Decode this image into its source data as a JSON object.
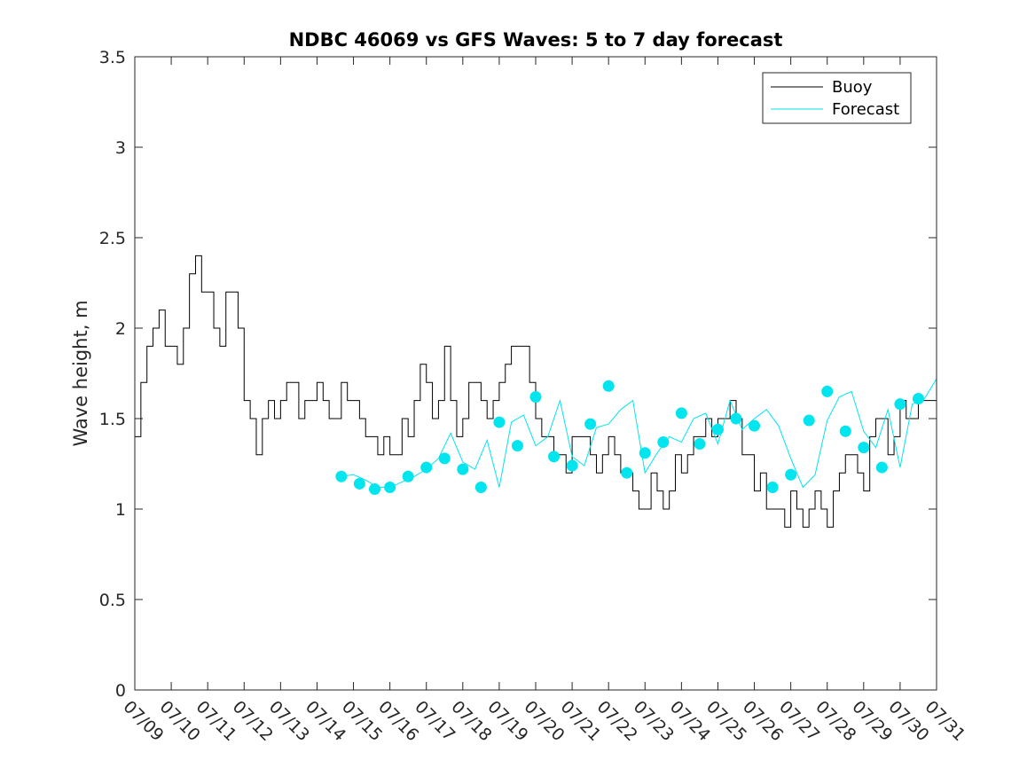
{
  "chart_data": {
    "type": "line",
    "title": "NDBC 46069 vs GFS Waves: 5 to 7 day forecast",
    "xlabel": "",
    "ylabel": "Wave height, m",
    "xlim": [
      "07/09",
      "07/31"
    ],
    "ylim": [
      0,
      3.5
    ],
    "y_ticks": [
      "0",
      "0.5",
      "1",
      "1.5",
      "2",
      "2.5",
      "3",
      "3.5"
    ],
    "x_ticks": [
      "07/09",
      "07/10",
      "07/11",
      "07/12",
      "07/13",
      "07/14",
      "07/15",
      "07/16",
      "07/17",
      "07/18",
      "07/19",
      "07/20",
      "07/21",
      "07/22",
      "07/23",
      "07/24",
      "07/25",
      "07/26",
      "07/27",
      "07/28",
      "07/29",
      "07/30",
      "07/31"
    ],
    "legend": {
      "placement": "top-right",
      "entries": [
        "Buoy",
        "Forecast"
      ]
    },
    "colors": {
      "buoy": "#000000",
      "forecast": "#00e5ee",
      "axis": "#262626"
    },
    "buoy": {
      "name": "Buoy",
      "x": [
        "07/09 00:00",
        "07/09 04:00",
        "07/09 08:00",
        "07/09 12:00",
        "07/09 16:00",
        "07/09 20:00",
        "07/10 00:00",
        "07/10 04:00",
        "07/10 08:00",
        "07/10 12:00",
        "07/10 16:00",
        "07/10 20:00",
        "07/11 00:00",
        "07/11 04:00",
        "07/11 08:00",
        "07/11 12:00",
        "07/11 16:00",
        "07/11 20:00",
        "07/12 00:00",
        "07/12 04:00",
        "07/12 08:00",
        "07/12 12:00",
        "07/12 16:00",
        "07/12 20:00",
        "07/13 00:00",
        "07/13 04:00",
        "07/13 08:00",
        "07/13 12:00",
        "07/13 16:00",
        "07/13 20:00",
        "07/14 00:00",
        "07/14 04:00",
        "07/14 08:00",
        "07/14 12:00",
        "07/14 16:00",
        "07/14 20:00",
        "07/15 00:00",
        "07/15 04:00",
        "07/15 08:00",
        "07/15 12:00",
        "07/15 16:00",
        "07/15 20:00",
        "07/16 00:00",
        "07/16 04:00",
        "07/16 08:00",
        "07/16 12:00",
        "07/16 16:00",
        "07/16 20:00",
        "07/17 00:00",
        "07/17 04:00",
        "07/17 08:00",
        "07/17 12:00",
        "07/17 16:00",
        "07/17 20:00",
        "07/18 00:00",
        "07/18 04:00",
        "07/18 08:00",
        "07/18 12:00",
        "07/18 16:00",
        "07/18 20:00",
        "07/19 00:00",
        "07/19 04:00",
        "07/19 08:00",
        "07/19 12:00",
        "07/19 16:00",
        "07/19 20:00",
        "07/20 00:00",
        "07/20 04:00",
        "07/20 08:00",
        "07/20 12:00",
        "07/20 16:00",
        "07/20 20:00",
        "07/21 00:00",
        "07/21 04:00",
        "07/21 08:00",
        "07/21 12:00",
        "07/21 16:00",
        "07/21 20:00",
        "07/22 00:00",
        "07/22 04:00",
        "07/22 08:00",
        "07/22 12:00",
        "07/22 16:00",
        "07/22 20:00",
        "07/23 00:00",
        "07/23 04:00",
        "07/23 08:00",
        "07/23 12:00",
        "07/23 16:00",
        "07/23 20:00",
        "07/24 00:00",
        "07/24 04:00",
        "07/24 08:00",
        "07/24 12:00",
        "07/24 16:00",
        "07/24 20:00",
        "07/25 00:00",
        "07/25 04:00",
        "07/25 08:00",
        "07/25 12:00",
        "07/25 16:00",
        "07/25 20:00",
        "07/26 00:00",
        "07/26 04:00",
        "07/26 08:00",
        "07/26 12:00",
        "07/26 16:00",
        "07/26 20:00",
        "07/27 00:00",
        "07/27 04:00",
        "07/27 08:00",
        "07/27 12:00",
        "07/27 16:00",
        "07/27 20:00",
        "07/28 00:00",
        "07/28 04:00",
        "07/28 08:00",
        "07/28 12:00",
        "07/28 16:00",
        "07/28 20:00",
        "07/29 00:00",
        "07/29 04:00",
        "07/29 08:00",
        "07/29 12:00",
        "07/29 16:00",
        "07/29 20:00",
        "07/30 00:00",
        "07/30 04:00",
        "07/30 08:00",
        "07/30 12:00",
        "07/30 16:00",
        "07/30 20:00",
        "07/31 00:00"
      ],
      "values": [
        1.4,
        1.7,
        1.9,
        2.0,
        2.1,
        1.9,
        1.9,
        1.8,
        2.0,
        2.3,
        2.4,
        2.2,
        2.2,
        2.0,
        1.9,
        2.2,
        2.2,
        2.0,
        1.6,
        1.5,
        1.3,
        1.5,
        1.6,
        1.5,
        1.6,
        1.7,
        1.7,
        1.5,
        1.6,
        1.6,
        1.7,
        1.6,
        1.5,
        1.5,
        1.7,
        1.6,
        1.6,
        1.5,
        1.4,
        1.4,
        1.3,
        1.4,
        1.3,
        1.3,
        1.5,
        1.4,
        1.6,
        1.8,
        1.7,
        1.5,
        1.6,
        1.9,
        1.6,
        1.4,
        1.5,
        1.7,
        1.7,
        1.6,
        1.5,
        1.6,
        1.7,
        1.8,
        1.9,
        1.9,
        1.9,
        1.7,
        1.5,
        1.4,
        1.4,
        1.3,
        1.3,
        1.2,
        1.4,
        1.4,
        1.4,
        1.3,
        1.2,
        1.3,
        1.4,
        1.3,
        1.2,
        1.2,
        1.1,
        1.0,
        1.0,
        1.2,
        1.1,
        1.0,
        1.1,
        1.3,
        1.2,
        1.3,
        1.4,
        1.4,
        1.5,
        1.4,
        1.5,
        1.5,
        1.6,
        1.5,
        1.3,
        1.3,
        1.1,
        1.2,
        1.0,
        1.0,
        1.0,
        0.9,
        1.1,
        1.0,
        0.9,
        1.0,
        1.1,
        1.0,
        0.9,
        1.1,
        1.2,
        1.3,
        1.3,
        1.2,
        1.1,
        1.4,
        1.5,
        1.5,
        1.3,
        1.4,
        1.6,
        1.5,
        1.5,
        1.6,
        1.6,
        1.6,
        1.5
      ]
    },
    "forecast": {
      "name": "Forecast",
      "x": [
        "07/14 16:00",
        "07/15 00:00",
        "07/15 08:00",
        "07/15 16:00",
        "07/16 00:00",
        "07/16 08:00",
        "07/16 16:00",
        "07/17 00:00",
        "07/17 08:00",
        "07/17 16:00",
        "07/18 00:00",
        "07/18 08:00",
        "07/18 16:00",
        "07/19 00:00",
        "07/19 08:00",
        "07/19 16:00",
        "07/20 00:00",
        "07/20 08:00",
        "07/20 16:00",
        "07/21 00:00",
        "07/21 08:00",
        "07/21 16:00",
        "07/22 00:00",
        "07/22 08:00",
        "07/22 16:00",
        "07/23 00:00",
        "07/23 08:00",
        "07/23 16:00",
        "07/24 00:00",
        "07/24 08:00",
        "07/24 16:00",
        "07/25 00:00",
        "07/25 08:00",
        "07/25 16:00",
        "07/26 00:00",
        "07/26 08:00",
        "07/26 16:00",
        "07/27 00:00",
        "07/27 08:00",
        "07/27 16:00",
        "07/28 00:00",
        "07/28 08:00",
        "07/28 16:00",
        "07/29 00:00",
        "07/29 08:00",
        "07/29 16:00",
        "07/30 00:00",
        "07/30 08:00",
        "07/30 16:00",
        "07/31 00:00"
      ],
      "values": [
        1.18,
        1.19,
        1.16,
        1.12,
        1.12,
        1.15,
        1.18,
        1.22,
        1.28,
        1.42,
        1.26,
        1.22,
        1.38,
        1.12,
        1.48,
        1.52,
        1.35,
        1.4,
        1.6,
        1.29,
        1.24,
        1.45,
        1.47,
        1.55,
        1.6,
        1.2,
        1.31,
        1.4,
        1.37,
        1.5,
        1.53,
        1.36,
        1.6,
        1.44,
        1.5,
        1.55,
        1.46,
        1.28,
        1.12,
        1.19,
        1.49,
        1.62,
        1.65,
        1.43,
        1.34,
        1.55,
        1.23,
        1.58,
        1.61,
        1.72
      ]
    },
    "forecast_markers": {
      "x": [
        "07/14 16:00",
        "07/15 04:00",
        "07/15 14:00",
        "07/16 00:00",
        "07/16 12:00",
        "07/17 00:00",
        "07/17 12:00",
        "07/18 00:00",
        "07/18 12:00",
        "07/19 00:00",
        "07/19 12:00",
        "07/20 00:00",
        "07/20 12:00",
        "07/21 00:00",
        "07/21 12:00",
        "07/22 00:00",
        "07/22 12:00",
        "07/23 00:00",
        "07/23 12:00",
        "07/24 00:00",
        "07/24 12:00",
        "07/25 00:00",
        "07/25 12:00",
        "07/26 00:00",
        "07/26 12:00",
        "07/27 00:00",
        "07/27 12:00",
        "07/28 00:00",
        "07/28 12:00",
        "07/29 00:00",
        "07/29 12:00",
        "07/30 00:00",
        "07/30 12:00"
      ],
      "values": [
        1.18,
        1.14,
        1.11,
        1.12,
        1.18,
        1.23,
        1.28,
        1.22,
        1.12,
        1.48,
        1.35,
        1.62,
        1.29,
        1.24,
        1.47,
        1.68,
        1.2,
        1.31,
        1.37,
        1.53,
        1.36,
        1.44,
        1.5,
        1.46,
        1.12,
        1.19,
        1.49,
        1.65,
        1.43,
        1.34,
        1.23,
        1.58,
        1.61
      ]
    }
  }
}
